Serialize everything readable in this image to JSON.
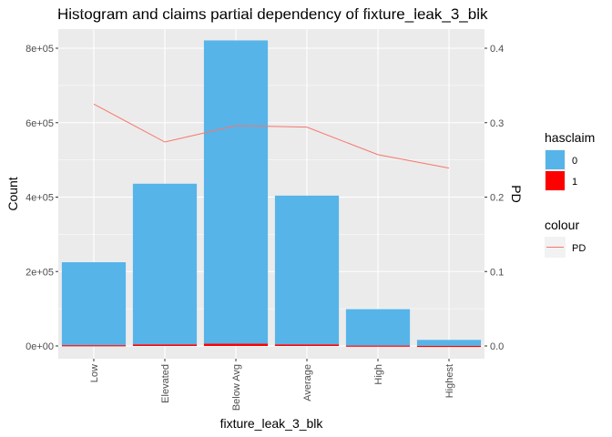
{
  "chart_data": {
    "type": "bar",
    "title": "Histogram and claims partial dependency of fixture_leak_3_blk",
    "xlabel": "fixture_leak_3_blk",
    "ylabel": "Count",
    "y2label": "PD",
    "categories": [
      "Low",
      "Elevated",
      "Below Avg",
      "Average",
      "High",
      "Highest"
    ],
    "series": [
      {
        "name": "0",
        "values": [
          223000,
          432000,
          815000,
          400000,
          98000,
          16000
        ]
      },
      {
        "name": "1",
        "values": [
          2000,
          4000,
          6000,
          4000,
          1000,
          300
        ]
      }
    ],
    "line_series": [
      {
        "name": "PD",
        "axis": "right",
        "values": [
          0.325,
          0.274,
          0.296,
          0.294,
          0.257,
          0.239
        ]
      }
    ],
    "ylim": [
      0,
      850000
    ],
    "y2lim": [
      0,
      0.425
    ],
    "yticks": [
      0,
      200000,
      400000,
      600000,
      800000
    ],
    "ytick_labels": [
      "0e+00",
      "2e+05",
      "4e+05",
      "6e+05",
      "8e+05"
    ],
    "y2ticks": [
      0,
      0.1,
      0.2,
      0.3,
      0.4
    ],
    "y2tick_labels": [
      "0.0",
      "0.1",
      "0.2",
      "0.3",
      "0.4"
    ],
    "grid": true,
    "legend": {
      "placement": "right",
      "groups": [
        {
          "title": "hasclaim",
          "entries": [
            {
              "label": "0",
              "color": "#56b4e9"
            },
            {
              "label": "1",
              "color": "#ff0000"
            }
          ]
        },
        {
          "title": "colour",
          "entries": [
            {
              "label": "PD",
              "color": "#f8766d"
            }
          ]
        }
      ]
    },
    "colors": {
      "bar0": "#56b4e9",
      "bar1": "#ff0000",
      "line": "#f8766d",
      "panel": "#ebebeb",
      "grid": "#ffffff"
    }
  }
}
